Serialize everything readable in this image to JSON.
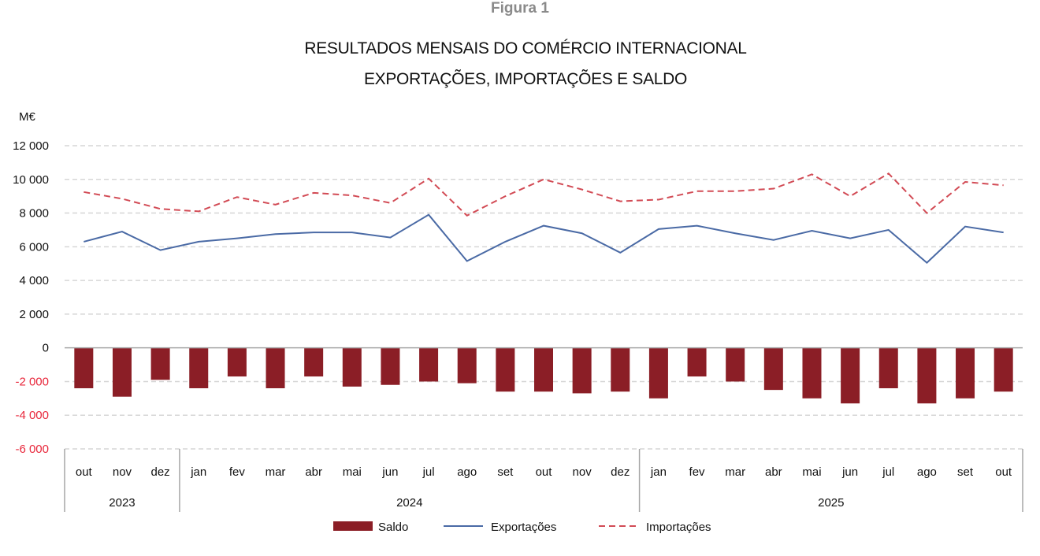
{
  "figure_label": "Figura 1",
  "chart_data": {
    "type": "bar+line",
    "title": "RESULTADOS MENSAIS DO COMÉRCIO INTERNACIONAL",
    "subtitle": "EXPORTAÇÕES, IMPORTAÇÕES E SALDO",
    "ylabel": "M€",
    "ylim": [
      -6000,
      12000
    ],
    "yticks": [
      12000,
      10000,
      8000,
      6000,
      4000,
      2000,
      0,
      -2000,
      -4000,
      -6000
    ],
    "ytick_labels": [
      "12 000",
      "10 000",
      "8 000",
      "6 000",
      "4 000",
      "2 000",
      "0",
      "-2 000",
      "-4 000",
      "-6 000"
    ],
    "grid": true,
    "legend_position": "bottom",
    "categories": [
      "out",
      "nov",
      "dez",
      "jan",
      "fev",
      "mar",
      "abr",
      "mai",
      "jun",
      "jul",
      "ago",
      "set",
      "out",
      "nov",
      "dez",
      "jan",
      "fev",
      "mar",
      "abr",
      "mai",
      "jun",
      "jul",
      "ago",
      "set",
      "out"
    ],
    "year_groups": [
      {
        "label": "2023",
        "count": 3
      },
      {
        "label": "2024",
        "count": 12
      },
      {
        "label": "2025",
        "count": 10
      }
    ],
    "series": [
      {
        "name": "Saldo",
        "type": "bar",
        "color": "#8b1e26",
        "values": [
          -2400,
          -2900,
          -1900,
          -2400,
          -1700,
          -2400,
          -1700,
          -2300,
          -2200,
          -2000,
          -2100,
          -2600,
          -2600,
          -2700,
          -2600,
          -3000,
          -1700,
          -2000,
          -2500,
          -3000,
          -3300,
          -2400,
          -3300,
          -3000,
          -2600
        ]
      },
      {
        "name": "Exportações",
        "type": "line",
        "color": "#4a6aa5",
        "values": [
          6300,
          6900,
          5800,
          6300,
          6500,
          6750,
          6850,
          6850,
          6550,
          7900,
          5150,
          6300,
          7250,
          6800,
          5650,
          7050,
          7250,
          6800,
          6400,
          6950,
          6500,
          7000,
          5050,
          7200,
          6850
        ]
      },
      {
        "name": "Importações",
        "type": "line-dashed",
        "color": "#d24b55",
        "values": [
          9250,
          8850,
          8250,
          8100,
          8950,
          8500,
          9200,
          9050,
          8600,
          10050,
          7850,
          9000,
          10000,
          9400,
          8700,
          8800,
          9300,
          9300,
          9450,
          10300,
          9000,
          10350,
          8000,
          9850,
          9650
        ]
      }
    ],
    "negative_tick_color": "#e8283c"
  }
}
